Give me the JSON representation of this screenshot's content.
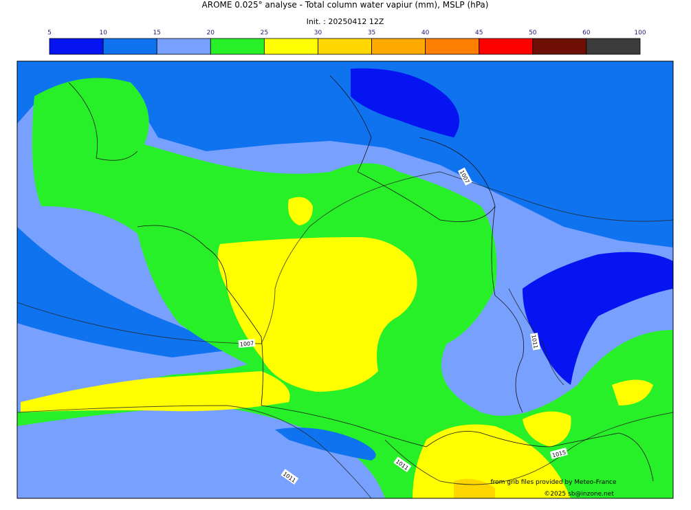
{
  "header": {
    "title": "AROME 0.025° analyse - Total column water vapiur (mm), MSLP (hPa)",
    "init": "Init. : 20250412 12Z"
  },
  "colorbar": {
    "bounds": [
      5,
      10,
      15,
      20,
      25,
      30,
      35,
      40,
      45,
      50,
      60,
      100
    ],
    "colors": [
      "#0514f0",
      "#0f73f0",
      "#78a0ff",
      "#28f028",
      "#ffff00",
      "#ffd700",
      "#ffaa00",
      "#ff7f00",
      "#ff0000",
      "#6e0f05",
      "#3c3c3c"
    ]
  },
  "isobar_labels": [
    1007,
    1007,
    1011,
    1011,
    1011,
    1015
  ],
  "credits": {
    "provider": "from grib files provided by Meteo-France",
    "copyright": "©2025 sb@inzone.net"
  }
}
